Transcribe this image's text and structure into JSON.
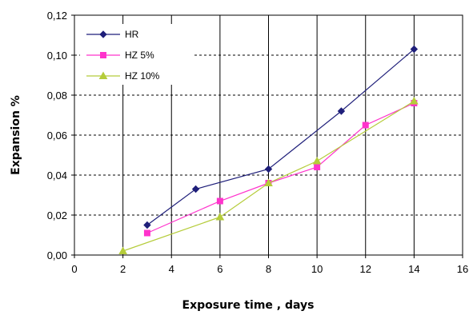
{
  "chart_data": {
    "type": "line",
    "title": "",
    "xlabel": "Exposure time , days",
    "ylabel": "Expansion %",
    "xlim": [
      0,
      16
    ],
    "ylim": [
      0,
      0.12
    ],
    "x_ticks": [
      "0",
      "2",
      "4",
      "6",
      "8",
      "10",
      "12",
      "14",
      "16"
    ],
    "y_ticks": [
      "0,00",
      "0,02",
      "0,04",
      "0,06",
      "0,08",
      "0,10",
      "0,12"
    ],
    "grid": {
      "vertical": "solid",
      "horizontal": "dashed"
    },
    "legend_position": "top-left",
    "series": [
      {
        "name": "HR",
        "color": "#1f1f7a",
        "marker": "diamond",
        "x": [
          3,
          5,
          8,
          11,
          14
        ],
        "y": [
          0.015,
          0.033,
          0.043,
          0.072,
          0.103
        ]
      },
      {
        "name": "HZ 5%",
        "color": "#ff33cc",
        "marker": "square",
        "x": [
          3,
          6,
          8,
          10,
          12,
          14
        ],
        "y": [
          0.011,
          0.027,
          0.036,
          0.044,
          0.065,
          0.076
        ]
      },
      {
        "name": "HZ 10%",
        "color": "#b5cc3a",
        "marker": "triangle",
        "x": [
          2,
          6,
          8,
          10,
          14
        ],
        "y": [
          0.002,
          0.019,
          0.036,
          0.047,
          0.077
        ]
      }
    ]
  }
}
